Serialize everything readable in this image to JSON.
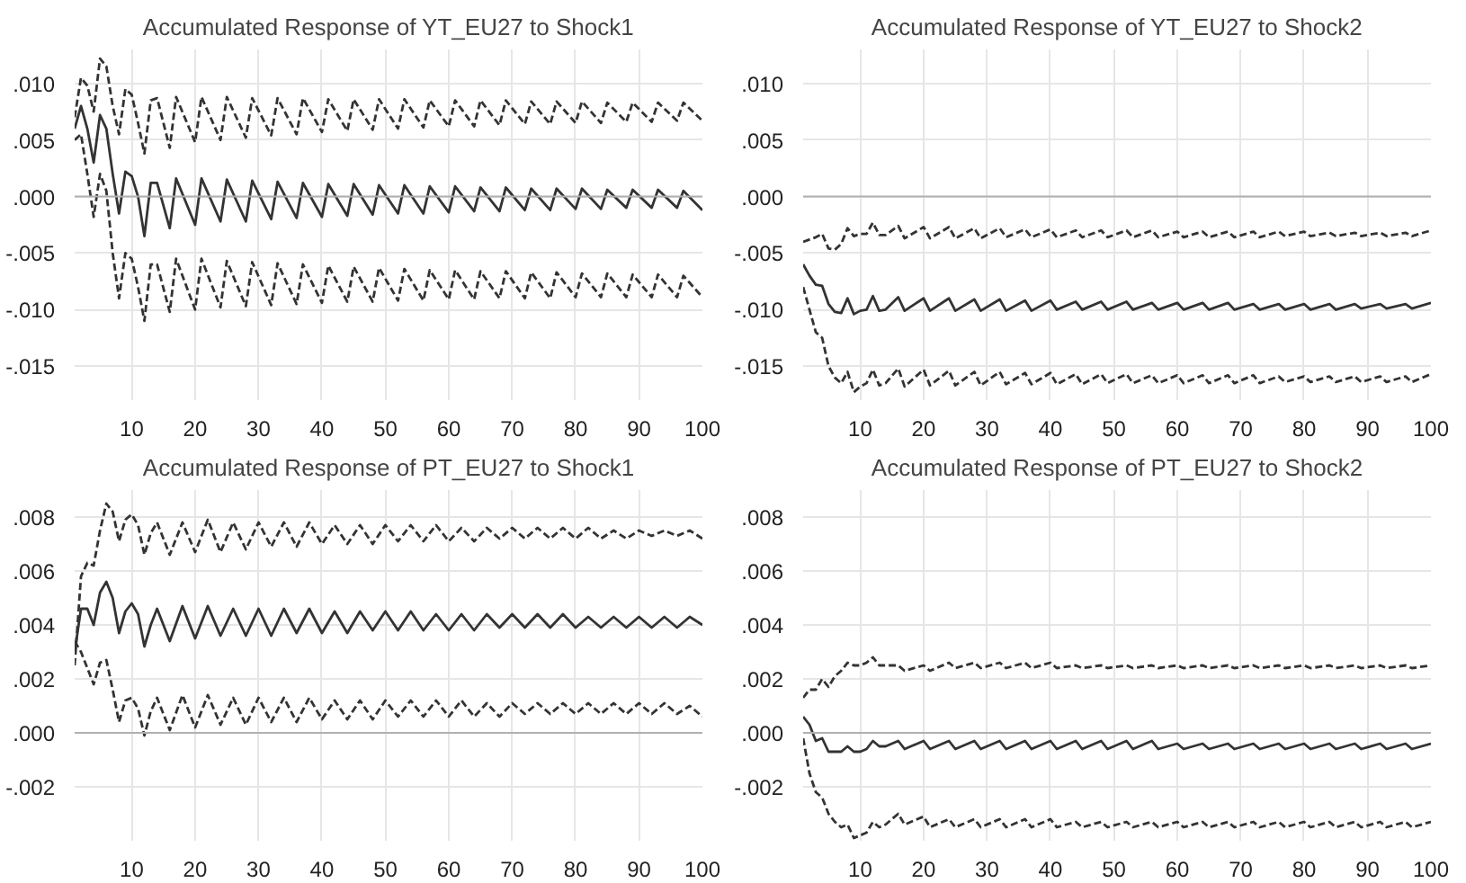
{
  "chart_data": [
    {
      "type": "line",
      "title": "Accumulated Response of YT_EU27 to Shock1",
      "grid": true,
      "xlim": [
        1,
        100
      ],
      "ylim": [
        -0.018,
        0.013
      ],
      "xticks": [
        10,
        20,
        30,
        40,
        50,
        60,
        70,
        80,
        90,
        100
      ],
      "yticks": [
        {
          "value": 0.01,
          "label": ".010"
        },
        {
          "value": 0.005,
          "label": ".005"
        },
        {
          "value": 0,
          "label": ".000"
        },
        {
          "value": -0.005,
          "label": "-.005"
        },
        {
          "value": -0.01,
          "label": "-.010"
        },
        {
          "value": -0.015,
          "label": "-.015"
        }
      ],
      "ref_lines": [
        {
          "axis": "y",
          "value": 0,
          "color": "#b0b0b0"
        }
      ],
      "x": [
        1,
        2,
        3,
        4,
        5,
        6,
        7,
        8,
        9,
        10,
        11,
        12,
        13,
        14,
        16,
        17,
        20,
        21,
        24,
        25,
        28,
        29,
        32,
        33,
        36,
        37,
        40,
        41,
        44,
        45,
        48,
        49,
        52,
        53,
        56,
        57,
        60,
        61,
        64,
        65,
        68,
        69,
        72,
        73,
        76,
        77,
        80,
        81,
        84,
        85,
        88,
        89,
        92,
        93,
        96,
        97,
        100
      ],
      "series": [
        {
          "color": "#333333",
          "line_style": "solid",
          "values": [
            0.006,
            0.008,
            0.006,
            0.003,
            0.0072,
            0.006,
            0.002,
            -0.0015,
            0.0022,
            0.0018,
            0.0,
            -0.0035,
            0.0012,
            0.0012,
            -0.0028,
            0.0016,
            -0.0025,
            0.0016,
            -0.0022,
            0.0015,
            -0.0022,
            0.0014,
            -0.002,
            0.0013,
            -0.0019,
            0.0012,
            -0.0018,
            0.0011,
            -0.0017,
            0.0011,
            -0.0016,
            0.001,
            -0.0015,
            0.001,
            -0.0015,
            0.0009,
            -0.0014,
            0.0009,
            -0.0013,
            0.0008,
            -0.0013,
            0.0008,
            -0.0012,
            0.0007,
            -0.0012,
            0.0007,
            -0.0011,
            0.0007,
            -0.0011,
            0.0006,
            -0.001,
            0.0006,
            -0.001,
            0.0006,
            -0.001,
            0.0005,
            -0.0012
          ]
        },
        {
          "color": "#333333",
          "line_style": "dashed",
          "values": [
            0.007,
            0.0105,
            0.0098,
            0.0075,
            0.0122,
            0.0115,
            0.008,
            0.0055,
            0.0095,
            0.009,
            0.0065,
            0.0038,
            0.0085,
            0.0087,
            0.0043,
            0.0088,
            0.0048,
            0.0088,
            0.005,
            0.0088,
            0.0052,
            0.0087,
            0.0054,
            0.0087,
            0.0055,
            0.0087,
            0.0057,
            0.0086,
            0.0058,
            0.0086,
            0.0059,
            0.0086,
            0.006,
            0.0086,
            0.0061,
            0.0085,
            0.0062,
            0.0085,
            0.0062,
            0.0085,
            0.0063,
            0.0085,
            0.0064,
            0.0084,
            0.0064,
            0.0084,
            0.0065,
            0.0084,
            0.0065,
            0.0083,
            0.0066,
            0.0083,
            0.0066,
            0.0083,
            0.0067,
            0.0083,
            0.0067
          ]
        },
        {
          "color": "#333333",
          "line_style": "dashed",
          "values": [
            0.005,
            0.0055,
            0.002,
            -0.0018,
            0.002,
            0.0005,
            -0.005,
            -0.009,
            -0.005,
            -0.0055,
            -0.008,
            -0.011,
            -0.006,
            -0.006,
            -0.0102,
            -0.0055,
            -0.01,
            -0.0055,
            -0.0098,
            -0.0057,
            -0.0097,
            -0.0058,
            -0.0096,
            -0.0059,
            -0.0095,
            -0.006,
            -0.0094,
            -0.0061,
            -0.0093,
            -0.0062,
            -0.0093,
            -0.0063,
            -0.0092,
            -0.0064,
            -0.0092,
            -0.0065,
            -0.0091,
            -0.0065,
            -0.0091,
            -0.0066,
            -0.009,
            -0.0066,
            -0.009,
            -0.0067,
            -0.009,
            -0.0067,
            -0.0089,
            -0.0068,
            -0.0089,
            -0.0068,
            -0.0089,
            -0.0069,
            -0.0089,
            -0.0069,
            -0.0089,
            -0.007,
            -0.0089
          ]
        }
      ]
    },
    {
      "type": "line",
      "title": "Accumulated Response of YT_EU27 to Shock2",
      "grid": true,
      "xlim": [
        1,
        100
      ],
      "ylim": [
        -0.018,
        0.013
      ],
      "xticks": [
        10,
        20,
        30,
        40,
        50,
        60,
        70,
        80,
        90,
        100
      ],
      "yticks": [
        {
          "value": 0.01,
          "label": ".010"
        },
        {
          "value": 0.005,
          "label": ".005"
        },
        {
          "value": 0,
          "label": ".000"
        },
        {
          "value": -0.005,
          "label": "-.005"
        },
        {
          "value": -0.01,
          "label": "-.010"
        },
        {
          "value": -0.015,
          "label": "-.015"
        }
      ],
      "ref_lines": [
        {
          "axis": "y",
          "value": 0,
          "color": "#b0b0b0"
        }
      ],
      "x": [
        1,
        2,
        3,
        4,
        5,
        6,
        7,
        8,
        9,
        10,
        11,
        12,
        13,
        14,
        16,
        17,
        20,
        21,
        24,
        25,
        28,
        29,
        32,
        33,
        36,
        37,
        40,
        41,
        44,
        45,
        48,
        49,
        52,
        53,
        56,
        57,
        60,
        61,
        64,
        65,
        68,
        69,
        72,
        73,
        76,
        77,
        80,
        81,
        84,
        85,
        88,
        89,
        92,
        93,
        96,
        97,
        100
      ],
      "series": [
        {
          "color": "#333333",
          "line_style": "solid",
          "values": [
            -0.006,
            -0.007,
            -0.0078,
            -0.0079,
            -0.0095,
            -0.0102,
            -0.0103,
            -0.009,
            -0.0104,
            -0.0101,
            -0.01,
            -0.0088,
            -0.0101,
            -0.01,
            -0.0089,
            -0.0101,
            -0.009,
            -0.0101,
            -0.009,
            -0.0101,
            -0.0091,
            -0.0101,
            -0.0091,
            -0.0101,
            -0.0092,
            -0.0101,
            -0.0092,
            -0.01,
            -0.0093,
            -0.01,
            -0.0093,
            -0.01,
            -0.0093,
            -0.01,
            -0.0094,
            -0.01,
            -0.0094,
            -0.01,
            -0.0094,
            -0.01,
            -0.0094,
            -0.01,
            -0.0095,
            -0.01,
            -0.0095,
            -0.01,
            -0.0095,
            -0.01,
            -0.0095,
            -0.01,
            -0.0095,
            -0.0099,
            -0.0095,
            -0.0099,
            -0.0095,
            -0.0099,
            -0.0094
          ]
        },
        {
          "color": "#333333",
          "line_style": "dashed",
          "values": [
            -0.004,
            -0.0038,
            -0.0036,
            -0.0033,
            -0.0046,
            -0.0047,
            -0.0042,
            -0.0028,
            -0.0035,
            -0.0033,
            -0.0033,
            -0.0023,
            -0.0034,
            -0.0034,
            -0.0026,
            -0.0037,
            -0.0027,
            -0.0037,
            -0.0027,
            -0.0037,
            -0.0028,
            -0.0037,
            -0.0028,
            -0.0036,
            -0.0029,
            -0.0036,
            -0.0029,
            -0.0036,
            -0.003,
            -0.0036,
            -0.003,
            -0.0036,
            -0.003,
            -0.0036,
            -0.003,
            -0.0036,
            -0.0031,
            -0.0036,
            -0.0031,
            -0.0036,
            -0.0031,
            -0.0036,
            -0.0031,
            -0.0036,
            -0.0031,
            -0.0035,
            -0.0031,
            -0.0035,
            -0.0032,
            -0.0035,
            -0.0032,
            -0.0035,
            -0.0032,
            -0.0035,
            -0.0032,
            -0.0035,
            -0.003
          ]
        },
        {
          "color": "#333333",
          "line_style": "dashed",
          "values": [
            -0.008,
            -0.01,
            -0.012,
            -0.0125,
            -0.015,
            -0.016,
            -0.0165,
            -0.0155,
            -0.0173,
            -0.0168,
            -0.0165,
            -0.0153,
            -0.0167,
            -0.0165,
            -0.0152,
            -0.0168,
            -0.0153,
            -0.0167,
            -0.0154,
            -0.0167,
            -0.0155,
            -0.0167,
            -0.0155,
            -0.0166,
            -0.0156,
            -0.0166,
            -0.0156,
            -0.0166,
            -0.0157,
            -0.0166,
            -0.0157,
            -0.0165,
            -0.0157,
            -0.0165,
            -0.0158,
            -0.0165,
            -0.0158,
            -0.0165,
            -0.0158,
            -0.0165,
            -0.0158,
            -0.0165,
            -0.0158,
            -0.0165,
            -0.0159,
            -0.0164,
            -0.0159,
            -0.0164,
            -0.0159,
            -0.0164,
            -0.0159,
            -0.0164,
            -0.0159,
            -0.0164,
            -0.0159,
            -0.0164,
            -0.0157
          ]
        }
      ]
    },
    {
      "type": "line",
      "title": "Accumulated Response of PT_EU27 to Shock1",
      "grid": true,
      "xlim": [
        1,
        100
      ],
      "ylim": [
        -0.004,
        0.009
      ],
      "xticks": [
        10,
        20,
        30,
        40,
        50,
        60,
        70,
        80,
        90,
        100
      ],
      "yticks": [
        {
          "value": 0.008,
          "label": ".008"
        },
        {
          "value": 0.006,
          "label": ".006"
        },
        {
          "value": 0.004,
          "label": ".004"
        },
        {
          "value": 0.002,
          "label": ".002"
        },
        {
          "value": 0,
          "label": ".000"
        },
        {
          "value": -0.002,
          "label": "-.002"
        }
      ],
      "ref_lines": [
        {
          "axis": "y",
          "value": 0,
          "color": "#b0b0b0"
        }
      ],
      "x": [
        1,
        2,
        3,
        4,
        5,
        6,
        7,
        8,
        9,
        10,
        11,
        12,
        13,
        14,
        16,
        18,
        20,
        22,
        24,
        26,
        28,
        30,
        32,
        34,
        36,
        38,
        40,
        42,
        44,
        46,
        48,
        50,
        52,
        54,
        56,
        58,
        60,
        62,
        64,
        66,
        68,
        70,
        72,
        74,
        76,
        78,
        80,
        82,
        84,
        86,
        88,
        90,
        92,
        94,
        96,
        98,
        100
      ],
      "series": [
        {
          "color": "#333333",
          "line_style": "solid",
          "values": [
            0.003,
            0.0046,
            0.0046,
            0.004,
            0.0052,
            0.0056,
            0.005,
            0.0037,
            0.0045,
            0.0048,
            0.0044,
            0.0032,
            0.004,
            0.0046,
            0.0034,
            0.0047,
            0.0035,
            0.0047,
            0.0036,
            0.0046,
            0.0036,
            0.0046,
            0.0036,
            0.0046,
            0.0037,
            0.0046,
            0.0037,
            0.0045,
            0.0037,
            0.0045,
            0.0038,
            0.0045,
            0.0038,
            0.0045,
            0.0038,
            0.0044,
            0.0038,
            0.0044,
            0.0038,
            0.0044,
            0.0039,
            0.0044,
            0.0039,
            0.0044,
            0.0039,
            0.0044,
            0.0039,
            0.0043,
            0.0039,
            0.0043,
            0.0039,
            0.0043,
            0.0039,
            0.0043,
            0.0039,
            0.0043,
            0.004
          ]
        },
        {
          "color": "#333333",
          "line_style": "dashed",
          "values": [
            0.0025,
            0.0058,
            0.0063,
            0.0062,
            0.0075,
            0.0085,
            0.0082,
            0.0071,
            0.0079,
            0.0081,
            0.0077,
            0.0066,
            0.0074,
            0.0078,
            0.0066,
            0.0078,
            0.0067,
            0.0079,
            0.0067,
            0.0078,
            0.0068,
            0.0078,
            0.0069,
            0.0078,
            0.0069,
            0.0078,
            0.007,
            0.0077,
            0.007,
            0.0077,
            0.007,
            0.0077,
            0.0071,
            0.0077,
            0.0071,
            0.0077,
            0.0071,
            0.0076,
            0.0071,
            0.0076,
            0.0072,
            0.0076,
            0.0072,
            0.0076,
            0.0072,
            0.0076,
            0.0072,
            0.0076,
            0.0072,
            0.0075,
            0.0072,
            0.0075,
            0.0073,
            0.0075,
            0.0073,
            0.0075,
            0.0072
          ]
        },
        {
          "color": "#333333",
          "line_style": "dashed",
          "values": [
            0.0034,
            0.003,
            0.0024,
            0.0018,
            0.0026,
            0.0027,
            0.0016,
            0.0004,
            0.0012,
            0.0013,
            0.0009,
            -0.0001,
            0.0008,
            0.0013,
            0.0001,
            0.0014,
            0.0002,
            0.0014,
            0.0003,
            0.0013,
            0.0003,
            0.0013,
            0.0004,
            0.0013,
            0.0004,
            0.0013,
            0.0005,
            0.0012,
            0.0005,
            0.0012,
            0.0005,
            0.0012,
            0.0006,
            0.0012,
            0.0006,
            0.0012,
            0.0006,
            0.0012,
            0.0006,
            0.0011,
            0.0006,
            0.0011,
            0.0007,
            0.0011,
            0.0007,
            0.0011,
            0.0007,
            0.0011,
            0.0007,
            0.0011,
            0.0007,
            0.0011,
            0.0007,
            0.0011,
            0.0007,
            0.001,
            0.0006
          ]
        }
      ]
    },
    {
      "type": "line",
      "title": "Accumulated Response of PT_EU27 to Shock2",
      "grid": true,
      "xlim": [
        1,
        100
      ],
      "ylim": [
        -0.004,
        0.009
      ],
      "xticks": [
        10,
        20,
        30,
        40,
        50,
        60,
        70,
        80,
        90,
        100
      ],
      "yticks": [
        {
          "value": 0.008,
          "label": ".008"
        },
        {
          "value": 0.006,
          "label": ".006"
        },
        {
          "value": 0.004,
          "label": ".004"
        },
        {
          "value": 0.002,
          "label": ".002"
        },
        {
          "value": 0,
          "label": ".000"
        },
        {
          "value": -0.002,
          "label": "-.002"
        }
      ],
      "ref_lines": [
        {
          "axis": "y",
          "value": 0,
          "color": "#b0b0b0"
        }
      ],
      "x": [
        1,
        2,
        3,
        4,
        5,
        6,
        7,
        8,
        9,
        10,
        11,
        12,
        13,
        14,
        16,
        17,
        20,
        21,
        24,
        25,
        28,
        29,
        32,
        33,
        36,
        37,
        40,
        41,
        44,
        45,
        48,
        49,
        52,
        53,
        56,
        57,
        60,
        61,
        64,
        65,
        68,
        69,
        72,
        73,
        76,
        77,
        80,
        81,
        84,
        85,
        88,
        89,
        92,
        93,
        96,
        97,
        100
      ],
      "series": [
        {
          "color": "#333333",
          "line_style": "solid",
          "values": [
            0.0006,
            0.0003,
            -0.0003,
            -0.0002,
            -0.0007,
            -0.0007,
            -0.0007,
            -0.0005,
            -0.0007,
            -0.0007,
            -0.0006,
            -0.0003,
            -0.0005,
            -0.0005,
            -0.0003,
            -0.0006,
            -0.0003,
            -0.0006,
            -0.0003,
            -0.0006,
            -0.0003,
            -0.0006,
            -0.0003,
            -0.0006,
            -0.0003,
            -0.0006,
            -0.0003,
            -0.0006,
            -0.0003,
            -0.0006,
            -0.0003,
            -0.0006,
            -0.0003,
            -0.0006,
            -0.0003,
            -0.0006,
            -0.0004,
            -0.0006,
            -0.0004,
            -0.0006,
            -0.0004,
            -0.0006,
            -0.0004,
            -0.0006,
            -0.0004,
            -0.0006,
            -0.0004,
            -0.0006,
            -0.0004,
            -0.0006,
            -0.0004,
            -0.0006,
            -0.0004,
            -0.0006,
            -0.0004,
            -0.0006,
            -0.0004
          ]
        },
        {
          "color": "#333333",
          "line_style": "dashed",
          "values": [
            0.0013,
            0.0016,
            0.0016,
            0.002,
            0.0017,
            0.0021,
            0.0023,
            0.0026,
            0.0025,
            0.0025,
            0.0026,
            0.0028,
            0.0025,
            0.0025,
            0.0025,
            0.0023,
            0.0025,
            0.0023,
            0.0026,
            0.0024,
            0.0026,
            0.0024,
            0.0026,
            0.0024,
            0.0026,
            0.0024,
            0.0026,
            0.0024,
            0.0025,
            0.0024,
            0.0025,
            0.0024,
            0.0025,
            0.0024,
            0.0025,
            0.0024,
            0.0025,
            0.0024,
            0.0025,
            0.0024,
            0.0025,
            0.0024,
            0.0025,
            0.0024,
            0.0025,
            0.0024,
            0.0025,
            0.0024,
            0.0025,
            0.0024,
            0.0025,
            0.0024,
            0.0025,
            0.0024,
            0.0025,
            0.0024,
            0.0025
          ]
        },
        {
          "color": "#333333",
          "line_style": "dashed",
          "values": [
            -0.0002,
            -0.0015,
            -0.0022,
            -0.0024,
            -0.003,
            -0.0033,
            -0.0035,
            -0.0034,
            -0.0039,
            -0.0038,
            -0.0037,
            -0.0033,
            -0.0035,
            -0.0034,
            -0.003,
            -0.0034,
            -0.0031,
            -0.0035,
            -0.0032,
            -0.0035,
            -0.0032,
            -0.0035,
            -0.0032,
            -0.0035,
            -0.0032,
            -0.0035,
            -0.0032,
            -0.0035,
            -0.0033,
            -0.0035,
            -0.0033,
            -0.0035,
            -0.0033,
            -0.0035,
            -0.0033,
            -0.0035,
            -0.0033,
            -0.0035,
            -0.0033,
            -0.0035,
            -0.0033,
            -0.0035,
            -0.0033,
            -0.0035,
            -0.0033,
            -0.0035,
            -0.0033,
            -0.0035,
            -0.0033,
            -0.0035,
            -0.0033,
            -0.0035,
            -0.0033,
            -0.0035,
            -0.0033,
            -0.0035,
            -0.0033
          ]
        }
      ]
    }
  ]
}
